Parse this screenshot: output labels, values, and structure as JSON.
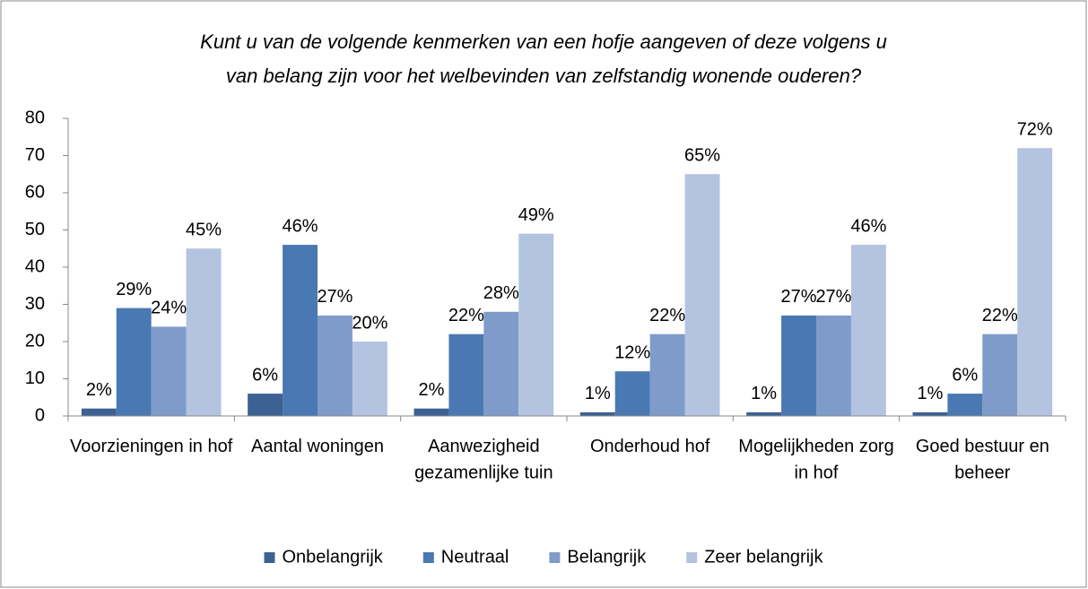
{
  "chart_data": {
    "type": "bar",
    "title": [
      "Kunt u van de volgende kenmerken van een hofje aangeven of deze volgens u",
      "van belang zijn voor het welbevinden van zelfstandig wonende ouderen?"
    ],
    "categories": [
      "Voorzieningen in hof",
      "Aantal woningen",
      "Aanwezigheid gezamenlijke tuin",
      "Onderhoud hof",
      "Mogelijkheden zorg in hof",
      "Goed bestuur en beheer"
    ],
    "series": [
      {
        "name": "Onbelangrijk",
        "color": "#3d6193",
        "values": [
          2,
          6,
          2,
          1,
          1,
          1
        ],
        "value_labels": [
          "2%",
          "6%",
          "2%",
          "1%",
          "1%",
          "1%"
        ]
      },
      {
        "name": "Neutraal",
        "color": "#4a78b2",
        "values": [
          29,
          46,
          22,
          12,
          27,
          6
        ],
        "value_labels": [
          "29%",
          "46%",
          "22%",
          "12%",
          "27%",
          "6%"
        ]
      },
      {
        "name": "Belangrijk",
        "color": "#7e9bca",
        "values": [
          24,
          27,
          28,
          22,
          27,
          22
        ],
        "value_labels": [
          "24%",
          "27%",
          "28%",
          "22%",
          "27%",
          "22%"
        ]
      },
      {
        "name": "Zeer belangrijk",
        "color": "#b3c3e0",
        "values": [
          45,
          20,
          49,
          65,
          46,
          72
        ],
        "value_labels": [
          "45%",
          "20%",
          "49%",
          "65%",
          "46%",
          "72%"
        ]
      }
    ],
    "ylim": [
      0,
      80
    ],
    "yticks": [
      0,
      10,
      20,
      30,
      40,
      50,
      60,
      70,
      80
    ],
    "legend": "bottom"
  }
}
